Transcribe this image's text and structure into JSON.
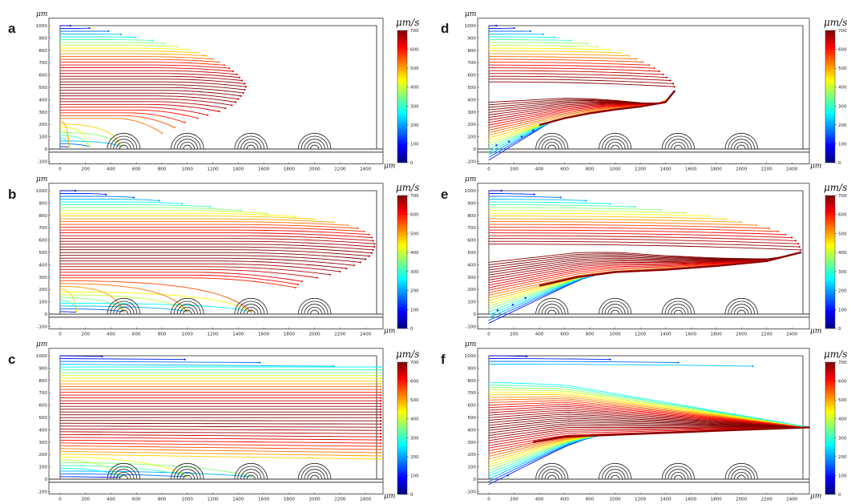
{
  "colors": {
    "colormap": [
      "#00007f",
      "#0000ff",
      "#007fff",
      "#00ffff",
      "#7fff7f",
      "#ffff00",
      "#ff7f00",
      "#ff0000",
      "#7f0000"
    ]
  },
  "chart_data": [
    {
      "type": "streamlines",
      "panel_label": "a",
      "xlabel": "μm",
      "ylabel": "μm",
      "x_ticks": [
        0,
        200,
        400,
        600,
        800,
        1000,
        1200,
        1400,
        1600,
        1800,
        2000,
        2200,
        2400
      ],
      "y_ticks": [
        -100,
        0,
        100,
        200,
        300,
        400,
        500,
        600,
        700,
        800,
        900,
        1000
      ],
      "xlim": [
        -80,
        2580
      ],
      "ylim": [
        -120,
        1060
      ],
      "colorbar": {
        "title": "μm/s",
        "ticks": [
          0,
          100,
          200,
          300,
          400,
          500,
          600,
          700
        ],
        "range": [
          0,
          700
        ]
      },
      "obstacles_x": [
        500,
        1000,
        1500,
        2000
      ],
      "obstacle_rings": 5,
      "obstacle_radius": [
        32,
        128
      ],
      "mode": "trapped_bottom",
      "streamline_count": 44,
      "upper_ends": [
        [
          80,
          1000
        ],
        [
          230,
          980
        ],
        [
          380,
          955
        ],
        [
          480,
          930
        ],
        [
          590,
          905
        ],
        [
          730,
          880
        ],
        [
          820,
          855
        ],
        [
          920,
          830
        ],
        [
          1010,
          805
        ],
        [
          1090,
          780
        ],
        [
          1150,
          755
        ],
        [
          1200,
          730
        ],
        [
          1250,
          705
        ],
        [
          1290,
          680
        ],
        [
          1330,
          655
        ],
        [
          1360,
          630
        ],
        [
          1390,
          605
        ],
        [
          1410,
          580
        ],
        [
          1430,
          555
        ],
        [
          1450,
          530
        ],
        [
          1460,
          505
        ],
        [
          1450,
          480
        ],
        [
          1440,
          455
        ],
        [
          1420,
          430
        ],
        [
          1400,
          405
        ],
        [
          1380,
          380
        ],
        [
          1350,
          355
        ],
        [
          1300,
          330
        ],
        [
          1250,
          305
        ],
        [
          1160,
          275
        ],
        [
          1080,
          250
        ],
        [
          980,
          215
        ],
        [
          900,
          175
        ],
        [
          800,
          130
        ]
      ],
      "lower_ends": [
        [
          70,
          30
        ],
        [
          230,
          50
        ],
        [
          480,
          30
        ]
      ]
    },
    {
      "type": "streamlines",
      "panel_label": "b",
      "xlabel": "μm",
      "ylabel": "μm",
      "x_ticks": [
        0,
        200,
        400,
        600,
        800,
        1000,
        1200,
        1400,
        1600,
        1800,
        2000,
        2200,
        2400
      ],
      "y_ticks": [
        -100,
        0,
        100,
        200,
        300,
        400,
        500,
        600,
        700,
        800,
        900,
        1000
      ],
      "xlim": [
        -80,
        2580
      ],
      "ylim": [
        -120,
        1060
      ],
      "colorbar": {
        "title": "μm/s",
        "ticks": [
          0,
          100,
          200,
          300,
          400,
          500,
          600,
          700
        ],
        "range": [
          0,
          700
        ]
      },
      "obstacles_x": [
        500,
        1000,
        1500,
        2000
      ],
      "obstacle_rings": 5,
      "obstacle_radius": [
        32,
        128
      ],
      "mode": "trapped_bottom",
      "streamline_count": 44,
      "upper_ends": [
        [
          120,
          1000
        ],
        [
          360,
          970
        ],
        [
          580,
          945
        ],
        [
          780,
          920
        ],
        [
          960,
          895
        ],
        [
          1180,
          870
        ],
        [
          1420,
          840
        ],
        [
          1630,
          815
        ],
        [
          1850,
          790
        ],
        [
          2000,
          770
        ],
        [
          2150,
          745
        ],
        [
          2260,
          720
        ],
        [
          2340,
          695
        ],
        [
          2390,
          670
        ],
        [
          2430,
          645
        ],
        [
          2450,
          620
        ],
        [
          2460,
          595
        ],
        [
          2470,
          570
        ],
        [
          2470,
          545
        ],
        [
          2460,
          520
        ],
        [
          2450,
          495
        ],
        [
          2430,
          470
        ],
        [
          2400,
          445
        ],
        [
          2360,
          420
        ],
        [
          2310,
          395
        ],
        [
          2250,
          370
        ],
        [
          2200,
          345
        ],
        [
          2120,
          320
        ],
        [
          2020,
          295
        ],
        [
          1900,
          265
        ],
        [
          1870,
          240
        ],
        [
          1850,
          215
        ]
      ],
      "lower_ends": [
        [
          130,
          25
        ],
        [
          500,
          20
        ],
        [
          1000,
          20
        ],
        [
          1500,
          20
        ]
      ]
    },
    {
      "type": "streamlines",
      "panel_label": "c",
      "xlabel": "μm",
      "ylabel": "μm",
      "x_ticks": [
        0,
        200,
        400,
        600,
        800,
        1000,
        1200,
        1400,
        1600,
        1800,
        2000,
        2200,
        2400
      ],
      "y_ticks": [
        -100,
        0,
        100,
        200,
        300,
        400,
        500,
        600,
        700,
        800,
        900,
        1000
      ],
      "xlim": [
        -80,
        2580
      ],
      "ylim": [
        -120,
        1060
      ],
      "colorbar": {
        "title": "μm/s",
        "ticks": [
          0,
          100,
          200,
          300,
          400,
          500,
          600,
          700
        ],
        "range": [
          0,
          700
        ]
      },
      "obstacles_x": [
        500,
        1000,
        1500,
        2000
      ],
      "obstacle_rings": 5,
      "obstacle_radius": [
        32,
        128
      ],
      "mode": "through_bottom",
      "streamline_count": 44,
      "upper_ends": [
        [
          330,
          995
        ],
        [
          980,
          970
        ],
        [
          1570,
          945
        ],
        [
          2150,
          915
        ]
      ],
      "lower_ends": [
        [
          480,
          30
        ],
        [
          1000,
          25
        ],
        [
          1500,
          25
        ]
      ]
    },
    {
      "type": "streamlines",
      "panel_label": "d",
      "xlabel": "μm",
      "ylabel": "μm",
      "x_ticks": [
        0,
        200,
        400,
        600,
        800,
        1000,
        1200,
        1400,
        1600,
        1800,
        2000,
        2200,
        2400
      ],
      "y_ticks": [
        -100,
        0,
        100,
        200,
        300,
        400,
        500,
        600,
        700,
        800,
        900,
        1000
      ],
      "xlim": [
        -80,
        2580
      ],
      "ylim": [
        -120,
        1060
      ],
      "colorbar": {
        "title": "μm/s",
        "ticks": [
          0,
          100,
          200,
          300,
          400,
          500,
          600,
          700
        ],
        "range": [
          0,
          700
        ]
      },
      "obstacles_x": [
        500,
        1000,
        1500,
        2000
      ],
      "obstacle_rings": 5,
      "obstacle_radius": [
        32,
        128
      ],
      "mode": "focused",
      "streamline_count": 44,
      "upper_ends": [
        [
          60,
          1000
        ],
        [
          200,
          980
        ],
        [
          330,
          955
        ],
        [
          430,
          930
        ],
        [
          520,
          905
        ],
        [
          650,
          880
        ],
        [
          780,
          855
        ],
        [
          860,
          830
        ],
        [
          960,
          805
        ],
        [
          1040,
          780
        ],
        [
          1110,
          755
        ],
        [
          1170,
          730
        ],
        [
          1220,
          705
        ],
        [
          1270,
          680
        ],
        [
          1310,
          655
        ],
        [
          1350,
          630
        ],
        [
          1380,
          605
        ],
        [
          1410,
          580
        ],
        [
          1440,
          555
        ],
        [
          1460,
          530
        ],
        [
          1470,
          505
        ]
      ],
      "lower_ends": [
        [
          60,
          30
        ],
        [
          160,
          60
        ],
        [
          260,
          100
        ],
        [
          350,
          150
        ]
      ],
      "focus_line": [
        [
          400,
          195
        ],
        [
          600,
          250
        ],
        [
          800,
          290
        ],
        [
          1000,
          320
        ],
        [
          1200,
          345
        ],
        [
          1400,
          380
        ],
        [
          1470,
          470
        ]
      ]
    },
    {
      "type": "streamlines",
      "panel_label": "e",
      "xlabel": "μm",
      "ylabel": "μm",
      "x_ticks": [
        0,
        200,
        400,
        600,
        800,
        1000,
        1200,
        1400,
        1600,
        1800,
        2000,
        2200,
        2400
      ],
      "y_ticks": [
        -100,
        0,
        100,
        200,
        300,
        400,
        500,
        600,
        700,
        800,
        900,
        1000
      ],
      "xlim": [
        -80,
        2580
      ],
      "ylim": [
        -120,
        1060
      ],
      "colorbar": {
        "title": "μm/s",
        "ticks": [
          0,
          100,
          200,
          300,
          400,
          500,
          600,
          700
        ],
        "range": [
          0,
          700
        ]
      },
      "obstacles_x": [
        500,
        1000,
        1500,
        2000
      ],
      "obstacle_rings": 5,
      "obstacle_radius": [
        32,
        128
      ],
      "mode": "focused",
      "streamline_count": 44,
      "upper_ends": [
        [
          100,
          1000
        ],
        [
          360,
          970
        ],
        [
          570,
          945
        ],
        [
          770,
          920
        ],
        [
          960,
          895
        ],
        [
          1160,
          870
        ],
        [
          1360,
          845
        ],
        [
          1550,
          820
        ],
        [
          1740,
          795
        ],
        [
          1880,
          770
        ],
        [
          2000,
          745
        ],
        [
          2120,
          720
        ],
        [
          2220,
          695
        ],
        [
          2290,
          670
        ],
        [
          2350,
          645
        ],
        [
          2400,
          620
        ],
        [
          2430,
          595
        ],
        [
          2450,
          570
        ],
        [
          2460,
          545
        ],
        [
          2470,
          520
        ]
      ],
      "lower_ends": [
        [
          70,
          30
        ],
        [
          190,
          75
        ],
        [
          290,
          130
        ]
      ],
      "focus_line": [
        [
          400,
          230
        ],
        [
          700,
          300
        ],
        [
          1000,
          340
        ],
        [
          1400,
          360
        ],
        [
          1800,
          390
        ],
        [
          2200,
          430
        ],
        [
          2470,
          500
        ]
      ]
    },
    {
      "type": "streamlines",
      "panel_label": "f",
      "xlabel": "μm",
      "ylabel": "μm",
      "x_ticks": [
        0,
        200,
        400,
        600,
        800,
        1000,
        1200,
        1400,
        1600,
        1800,
        2000,
        2200,
        2400
      ],
      "y_ticks": [
        -100,
        0,
        100,
        200,
        300,
        400,
        500,
        600,
        700,
        800,
        900,
        1000
      ],
      "xlim": [
        -80,
        2580
      ],
      "ylim": [
        -120,
        1060
      ],
      "colorbar": {
        "title": "μm/s",
        "ticks": [
          0,
          100,
          200,
          300,
          400,
          500,
          600,
          700
        ],
        "range": [
          0,
          700
        ]
      },
      "obstacles_x": [
        500,
        1000,
        1500,
        2000
      ],
      "obstacle_rings": 5,
      "obstacle_radius": [
        32,
        128
      ],
      "mode": "focused_through",
      "streamline_count": 44,
      "upper_ends": [
        [
          300,
          995
        ],
        [
          960,
          970
        ],
        [
          1500,
          945
        ],
        [
          2090,
          915
        ]
      ],
      "lower_ends": [
        [
          150,
          30
        ]
      ],
      "focus_line": [
        [
          350,
          300
        ],
        [
          600,
          345
        ],
        [
          1000,
          360
        ],
        [
          1500,
          380
        ],
        [
          2000,
          400
        ],
        [
          2540,
          420
        ]
      ]
    }
  ]
}
